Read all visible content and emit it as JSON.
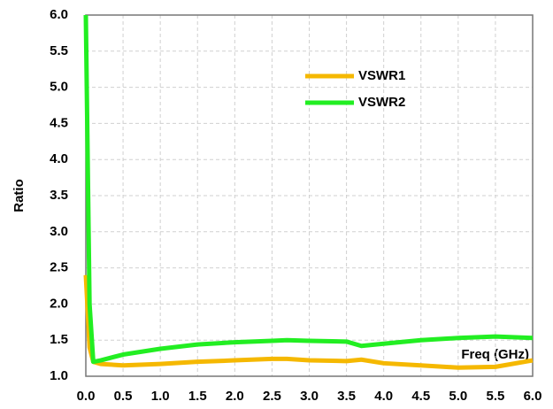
{
  "chart_data": {
    "type": "line",
    "ylabel": "Ratio",
    "xlabel": "Freq (GHz)",
    "x": [
      0,
      0.05,
      0.1,
      0.2,
      0.5,
      1,
      1.5,
      2,
      2.5,
      2.7,
      3,
      3.5,
      3.7,
      4,
      4.5,
      5,
      5.5,
      6
    ],
    "series": [
      {
        "name": "VSWR1",
        "color": "#f5b800",
        "values": [
          2.4,
          1.4,
          1.2,
          1.17,
          1.15,
          1.17,
          1.2,
          1.22,
          1.24,
          1.24,
          1.22,
          1.21,
          1.23,
          1.18,
          1.15,
          1.12,
          1.13,
          1.22
        ]
      },
      {
        "name": "VSWR2",
        "color": "#22ee22",
        "values": [
          6.0,
          2.0,
          1.2,
          1.22,
          1.3,
          1.38,
          1.44,
          1.47,
          1.49,
          1.5,
          1.49,
          1.48,
          1.42,
          1.45,
          1.5,
          1.53,
          1.55,
          1.53
        ]
      }
    ],
    "xlim": [
      0,
      6
    ],
    "ylim": [
      1,
      6
    ],
    "xticks": [
      {
        "value": 0,
        "label": "0.0"
      },
      {
        "value": 0.5,
        "label": "0.5"
      },
      {
        "value": 1,
        "label": "1.0"
      },
      {
        "value": 1.5,
        "label": "1.5"
      },
      {
        "value": 2,
        "label": "2.0"
      },
      {
        "value": 2.5,
        "label": "2.5"
      },
      {
        "value": 3,
        "label": "3.0"
      },
      {
        "value": 3.5,
        "label": "3.5"
      },
      {
        "value": 4,
        "label": "4.0"
      },
      {
        "value": 4.5,
        "label": "4.5"
      },
      {
        "value": 5,
        "label": "5.0"
      },
      {
        "value": 5.5,
        "label": "5.5"
      },
      {
        "value": 6,
        "label": "6.0"
      }
    ],
    "yticks": [
      {
        "value": 1,
        "label": "1.0"
      },
      {
        "value": 1.5,
        "label": "1.5"
      },
      {
        "value": 2,
        "label": "2.0"
      },
      {
        "value": 2.5,
        "label": "2.5"
      },
      {
        "value": 3,
        "label": "3.0"
      },
      {
        "value": 3.5,
        "label": "3.5"
      },
      {
        "value": 4,
        "label": "4.0"
      },
      {
        "value": 4.5,
        "label": "4.5"
      },
      {
        "value": 5,
        "label": "5.0"
      },
      {
        "value": 5.5,
        "label": "5.5"
      },
      {
        "value": 6,
        "label": "6.0"
      }
    ],
    "grid": true,
    "legend": "top-center"
  }
}
